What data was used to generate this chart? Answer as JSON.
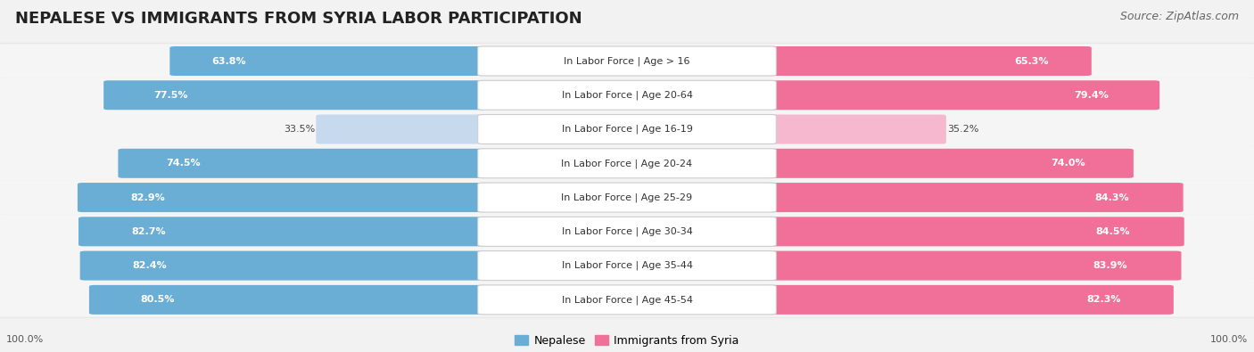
{
  "title": "NEPALESE VS IMMIGRANTS FROM SYRIA LABOR PARTICIPATION",
  "source": "Source: ZipAtlas.com",
  "categories": [
    "In Labor Force | Age > 16",
    "In Labor Force | Age 20-64",
    "In Labor Force | Age 16-19",
    "In Labor Force | Age 20-24",
    "In Labor Force | Age 25-29",
    "In Labor Force | Age 30-34",
    "In Labor Force | Age 35-44",
    "In Labor Force | Age 45-54"
  ],
  "nepalese_values": [
    63.8,
    77.5,
    33.5,
    74.5,
    82.9,
    82.7,
    82.4,
    80.5
  ],
  "syria_values": [
    65.3,
    79.4,
    35.2,
    74.0,
    84.3,
    84.5,
    83.9,
    82.3
  ],
  "nepalese_color": "#6aaed6",
  "nepalese_color_light": "#c6d9ed",
  "syria_color": "#f0709a",
  "syria_color_light": "#f5b8ce",
  "bg_color": "#f2f2f2",
  "row_bg_color": "#e8e8e8",
  "bar_bg_color": "#f8f8f8",
  "max_val": 100.0,
  "legend_nepalese": "Nepalese",
  "legend_syria": "Immigrants from Syria",
  "title_fontsize": 13,
  "source_fontsize": 9,
  "label_fontsize": 8,
  "value_fontsize": 8
}
